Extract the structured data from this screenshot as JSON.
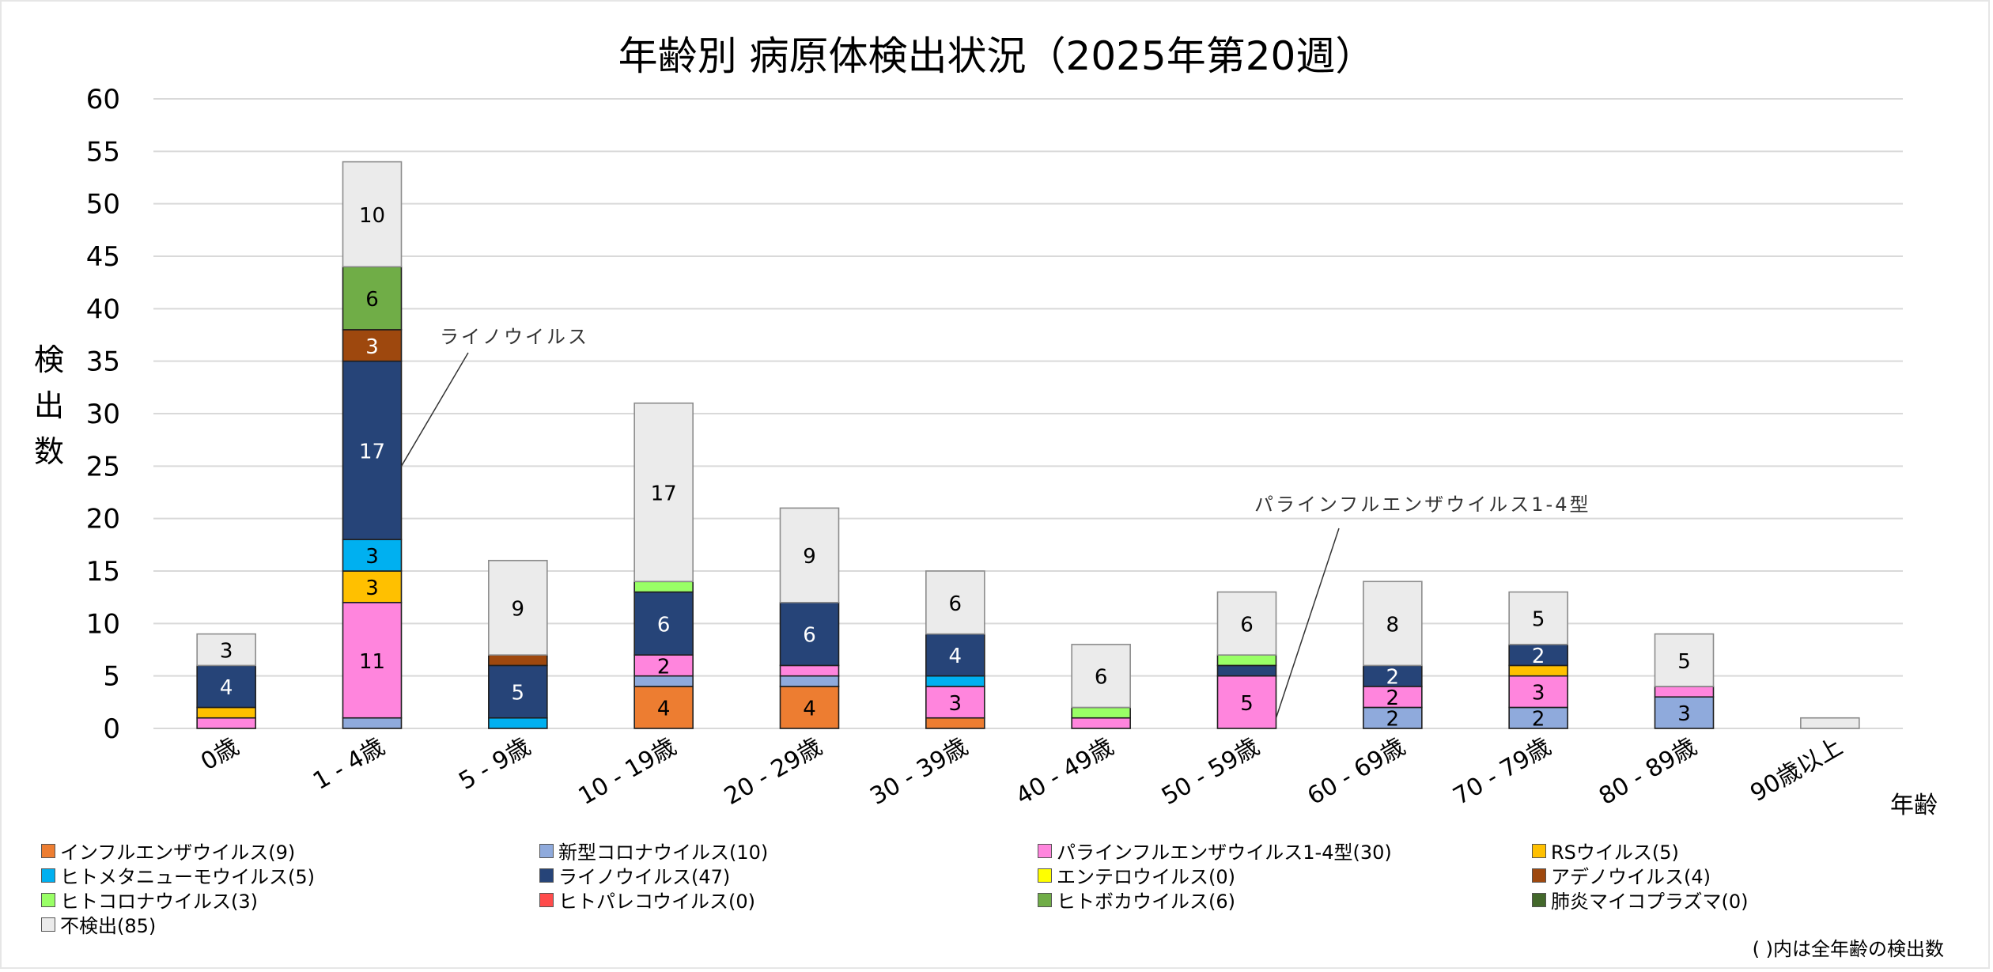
{
  "chart_data": {
    "type": "bar",
    "stacked": true,
    "title": "年齢別 病原体検出状況（2025年第20週）",
    "xlabel": "年齢",
    "ylabel": "検出数",
    "ylim": [
      0,
      60
    ],
    "yticks": [
      0,
      5,
      10,
      15,
      20,
      25,
      30,
      35,
      40,
      45,
      50,
      55,
      60
    ],
    "grid": true,
    "legend_position": "bottom",
    "categories": [
      "0歳",
      "1 - 4歳",
      "5 - 9歳",
      "10 - 19歳",
      "20 - 29歳",
      "30 - 39歳",
      "40 - 49歳",
      "50 - 59歳",
      "60 - 69歳",
      "70 - 79歳",
      "80 - 89歳",
      "90歳以上"
    ],
    "series": [
      {
        "name": "インフルエンザウイルス",
        "total": 9,
        "color": "#ED7D31",
        "label_color": "#000000",
        "values": [
          0,
          0,
          0,
          4,
          4,
          1,
          0,
          0,
          0,
          0,
          0,
          0
        ]
      },
      {
        "name": "新型コロナウイルス",
        "total": 10,
        "color": "#8FAADC",
        "label_color": "#000000",
        "values": [
          0,
          1,
          0,
          1,
          1,
          0,
          0,
          0,
          2,
          2,
          3,
          0
        ]
      },
      {
        "name": "パラインフルエンザウイルス1-4型",
        "total": 30,
        "color": "#FF85DD",
        "label_color": "#000000",
        "values": [
          1,
          11,
          0,
          2,
          1,
          3,
          1,
          5,
          2,
          3,
          1,
          0
        ]
      },
      {
        "name": "RSウイルス",
        "total": 5,
        "color": "#FFC000",
        "label_color": "#000000",
        "values": [
          1,
          3,
          0,
          0,
          0,
          0,
          0,
          0,
          0,
          1,
          0,
          0
        ]
      },
      {
        "name": "ヒトメタニューモウイルス",
        "total": 5,
        "color": "#00B0F0",
        "label_color": "#000000",
        "values": [
          0,
          3,
          1,
          0,
          0,
          1,
          0,
          0,
          0,
          0,
          0,
          0
        ]
      },
      {
        "name": "ライノウイルス",
        "total": 47,
        "color": "#264478",
        "label_color": "#FFFFFF",
        "values": [
          4,
          17,
          5,
          6,
          6,
          4,
          0,
          1,
          2,
          2,
          0,
          0
        ]
      },
      {
        "name": "エンテロウイルス",
        "total": 0,
        "color": "#FFFF00",
        "label_color": "#000000",
        "values": [
          0,
          0,
          0,
          0,
          0,
          0,
          0,
          0,
          0,
          0,
          0,
          0
        ]
      },
      {
        "name": "アデノウイルス",
        "total": 4,
        "color": "#9E480E",
        "label_color": "#FFFFFF",
        "values": [
          0,
          3,
          1,
          0,
          0,
          0,
          0,
          0,
          0,
          0,
          0,
          0
        ]
      },
      {
        "name": "ヒトコロナウイルス",
        "total": 3,
        "color": "#99FF66",
        "label_color": "#000000",
        "values": [
          0,
          0,
          0,
          1,
          0,
          0,
          1,
          1,
          0,
          0,
          0,
          0
        ]
      },
      {
        "name": "ヒトパレコウイルス",
        "total": 0,
        "color": "#FF4B4B",
        "label_color": "#000000",
        "values": [
          0,
          0,
          0,
          0,
          0,
          0,
          0,
          0,
          0,
          0,
          0,
          0
        ]
      },
      {
        "name": "ヒトボカウイルス",
        "total": 6,
        "color": "#70AD47",
        "label_color": "#000000",
        "values": [
          0,
          6,
          0,
          0,
          0,
          0,
          0,
          0,
          0,
          0,
          0,
          0
        ]
      },
      {
        "name": "肺炎マイコプラズマ",
        "total": 0,
        "color": "#43682B",
        "label_color": "#FFFFFF",
        "values": [
          0,
          0,
          0,
          0,
          0,
          0,
          0,
          0,
          0,
          0,
          0,
          0
        ]
      },
      {
        "name": "不検出",
        "total": 85,
        "color": "#EBEBEB",
        "label_color": "#000000",
        "values": [
          3,
          10,
          9,
          17,
          9,
          6,
          6,
          6,
          8,
          5,
          5,
          1
        ]
      }
    ],
    "annotations": [
      {
        "text": "ライノウイルス",
        "series": "ライノウイルス",
        "category": "1 - 4歳"
      },
      {
        "text": "パラインフルエンザウイルス1-4型",
        "series": "パラインフルエンザウイルス1-4型",
        "category": "50 - 59歳"
      }
    ],
    "note": "( )内は全年齢の検出数"
  }
}
